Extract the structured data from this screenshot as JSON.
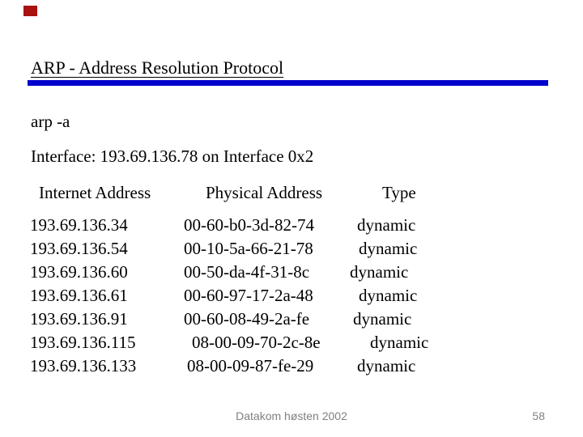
{
  "slide": {
    "title": "ARP - Address Resolution Protocol",
    "command": "arp -a",
    "interface_line": "Interface: 193.69.136.78 on Interface 0x2",
    "arp_table": {
      "headers": [
        "Internet Address",
        "Physical Address",
        "Type"
      ],
      "rows": [
        [
          "193.69.136.34",
          "00-60-b0-3d-82-74",
          "dynamic"
        ],
        [
          "193.69.136.54",
          "00-10-5a-66-21-78",
          "dynamic"
        ],
        [
          "193.69.136.60",
          "00-50-da-4f-31-8c",
          "dynamic"
        ],
        [
          "193.69.136.61",
          "00-60-97-17-2a-48",
          "dynamic"
        ],
        [
          "193.69.136.91",
          "00-60-08-49-2a-fe",
          "dynamic"
        ],
        [
          "193.69.136.115",
          "08-00-09-70-2c-8e",
          "dynamic"
        ],
        [
          "193.69.136.133",
          "08-00-09-87-fe-29",
          "dynamic"
        ]
      ]
    },
    "footer": {
      "text": "Datakom høsten 2002",
      "page_number": "58"
    },
    "colors": {
      "accent_bar": "#0000cc",
      "logo_square": "#aa1111",
      "footer_text": "#808080",
      "body_text": "#000000"
    }
  }
}
